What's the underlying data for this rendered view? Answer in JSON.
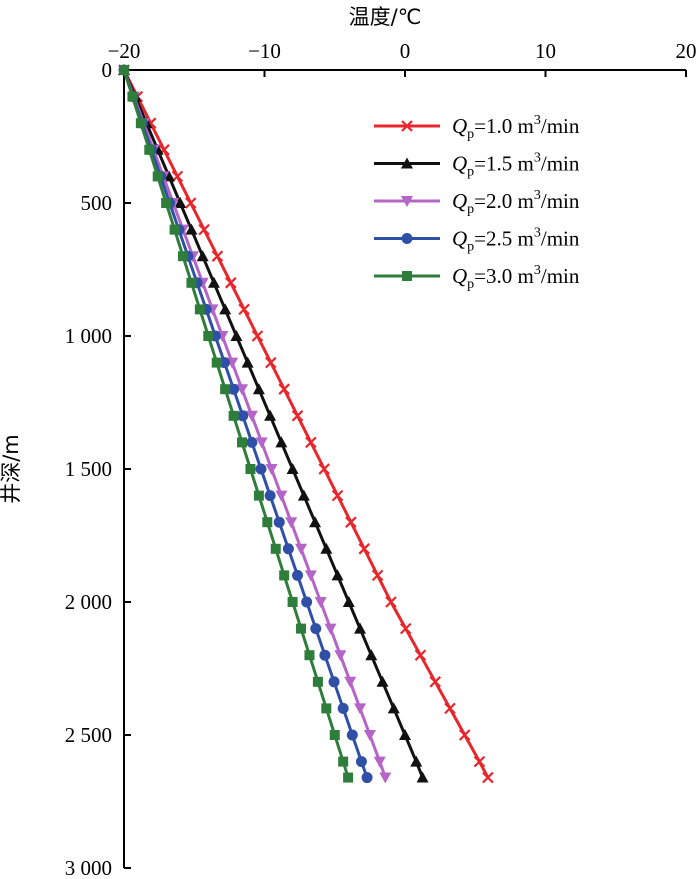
{
  "chart_data": {
    "type": "line",
    "xlabel": "温度/℃",
    "ylabel": "井深/m",
    "xlim": [
      -20,
      20
    ],
    "ylim": [
      0,
      3000
    ],
    "x_axis_position": "top",
    "y_inverted": true,
    "x_ticks": [
      -20,
      -10,
      0,
      10,
      20
    ],
    "x_tick_labels": [
      "−20",
      "−10",
      "0",
      "10",
      "20"
    ],
    "y_ticks": [
      0,
      500,
      1000,
      1500,
      2000,
      2500,
      3000
    ],
    "y_tick_labels": [
      "0",
      "500",
      "1 000",
      "1 500",
      "2 000",
      "2 500",
      "3 000"
    ],
    "grid": false,
    "legend_position": "top-right",
    "depth": [
      0,
      100,
      200,
      300,
      400,
      500,
      600,
      700,
      800,
      900,
      1000,
      1100,
      1200,
      1300,
      1400,
      1500,
      1600,
      1700,
      1800,
      1900,
      2000,
      2100,
      2200,
      2300,
      2400,
      2500,
      2600,
      2660
    ],
    "series": [
      {
        "label_var": "Q",
        "label_sub": "p",
        "label_value": "=1.0 m",
        "label_sup": "3",
        "label_unit": "/min",
        "color": "#e8262b",
        "marker": "x",
        "values": [
          -20.0,
          -19.05,
          -18.1,
          -17.15,
          -16.2,
          -15.25,
          -14.3,
          -13.35,
          -12.4,
          -11.45,
          -10.5,
          -9.55,
          -8.6,
          -7.65,
          -6.7,
          -5.75,
          -4.8,
          -3.85,
          -2.9,
          -1.95,
          -1.0,
          0.05,
          1.1,
          2.15,
          3.2,
          4.25,
          5.3,
          5.9
        ]
      },
      {
        "label_var": "Q",
        "label_sub": "p",
        "label_value": "=1.5 m",
        "label_sup": "3",
        "label_unit": "/min",
        "color": "#111111",
        "marker": "triangle-up",
        "values": [
          -20.0,
          -19.2,
          -18.4,
          -17.6,
          -16.8,
          -16.0,
          -15.2,
          -14.4,
          -13.6,
          -12.8,
          -12.0,
          -11.2,
          -10.4,
          -9.6,
          -8.8,
          -8.0,
          -7.2,
          -6.4,
          -5.6,
          -4.8,
          -4.0,
          -3.2,
          -2.4,
          -1.6,
          -0.8,
          0.0,
          0.8,
          1.25
        ]
      },
      {
        "label_var": "Q",
        "label_sub": "p",
        "label_value": "=2.0 m",
        "label_sup": "3",
        "label_unit": "/min",
        "color": "#b564c8",
        "marker": "triangle-down",
        "values": [
          -20.0,
          -19.3,
          -18.6,
          -17.9,
          -17.2,
          -16.5,
          -15.8,
          -15.1,
          -14.4,
          -13.7,
          -13.0,
          -12.3,
          -11.6,
          -10.9,
          -10.2,
          -9.5,
          -8.8,
          -8.1,
          -7.4,
          -6.7,
          -6.0,
          -5.3,
          -4.6,
          -3.9,
          -3.2,
          -2.5,
          -1.8,
          -1.4
        ]
      },
      {
        "label_var": "Q",
        "label_sub": "p",
        "label_value": "=2.5 m",
        "label_sup": "3",
        "label_unit": "/min",
        "color": "#3050a8",
        "marker": "circle",
        "values": [
          -20.0,
          -19.35,
          -18.7,
          -18.05,
          -17.4,
          -16.75,
          -16.1,
          -15.45,
          -14.8,
          -14.15,
          -13.5,
          -12.85,
          -12.2,
          -11.55,
          -10.9,
          -10.25,
          -9.6,
          -8.95,
          -8.3,
          -7.65,
          -7.0,
          -6.35,
          -5.7,
          -5.05,
          -4.4,
          -3.75,
          -3.1,
          -2.7
        ]
      },
      {
        "label_var": "Q",
        "label_sub": "p",
        "label_value": "=3.0 m",
        "label_sup": "3",
        "label_unit": "/min",
        "color": "#2e7d3a",
        "marker": "square",
        "values": [
          -20.0,
          -19.4,
          -18.8,
          -18.2,
          -17.6,
          -17.0,
          -16.4,
          -15.8,
          -15.2,
          -14.6,
          -14.0,
          -13.4,
          -12.8,
          -12.2,
          -11.6,
          -11.0,
          -10.4,
          -9.8,
          -9.2,
          -8.6,
          -8.0,
          -7.4,
          -6.8,
          -6.2,
          -5.6,
          -5.0,
          -4.4,
          -4.05
        ]
      }
    ]
  }
}
